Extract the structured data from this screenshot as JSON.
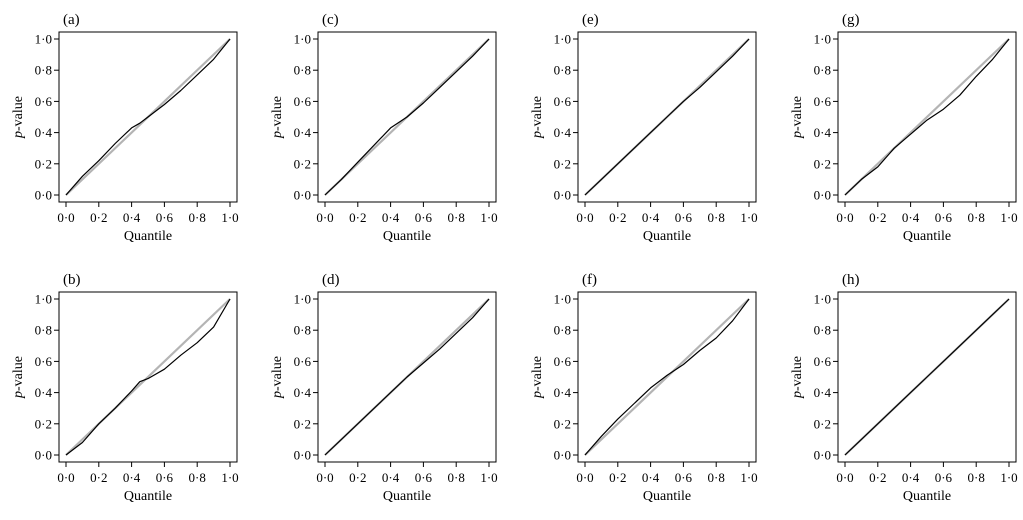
{
  "figure": {
    "x_axis_label": "Quantile",
    "y_axis_label_italic": "p",
    "y_axis_label_rest": "-value",
    "ticks": [
      "0·0",
      "0·2",
      "0·4",
      "0·6",
      "0·8",
      "1·0"
    ]
  },
  "chart_data": [
    {
      "panel": "(a)",
      "type": "line",
      "xlabel": "Quantile",
      "ylabel": "p-value",
      "xlim": [
        0,
        1
      ],
      "ylim": [
        0,
        1
      ],
      "series": [
        {
          "x": [
            0,
            0.1,
            0.2,
            0.3,
            0.4,
            0.45,
            0.5,
            0.6,
            0.7,
            0.8,
            0.9,
            1.0
          ],
          "y": [
            0,
            0.12,
            0.22,
            0.33,
            0.43,
            0.46,
            0.5,
            0.58,
            0.67,
            0.77,
            0.87,
            1.0
          ]
        }
      ]
    },
    {
      "panel": "(b)",
      "type": "line",
      "xlabel": "Quantile",
      "ylabel": "p-value",
      "xlim": [
        0,
        1
      ],
      "ylim": [
        0,
        1
      ],
      "series": [
        {
          "x": [
            0,
            0.1,
            0.2,
            0.3,
            0.4,
            0.45,
            0.5,
            0.6,
            0.7,
            0.8,
            0.9,
            1.0
          ],
          "y": [
            0,
            0.08,
            0.2,
            0.3,
            0.41,
            0.47,
            0.49,
            0.55,
            0.64,
            0.72,
            0.82,
            1.0
          ]
        }
      ]
    },
    {
      "panel": "(c)",
      "type": "line",
      "xlabel": "Quantile",
      "ylabel": "p-value",
      "xlim": [
        0,
        1
      ],
      "ylim": [
        0,
        1
      ],
      "series": [
        {
          "x": [
            0,
            0.1,
            0.2,
            0.3,
            0.4,
            0.5,
            0.6,
            0.7,
            0.8,
            0.9,
            1.0
          ],
          "y": [
            0,
            0.1,
            0.21,
            0.32,
            0.43,
            0.5,
            0.59,
            0.69,
            0.79,
            0.89,
            1.0
          ]
        }
      ]
    },
    {
      "panel": "(d)",
      "type": "line",
      "xlabel": "Quantile",
      "ylabel": "p-value",
      "xlim": [
        0,
        1
      ],
      "ylim": [
        0,
        1
      ],
      "series": [
        {
          "x": [
            0,
            0.1,
            0.2,
            0.3,
            0.4,
            0.5,
            0.6,
            0.7,
            0.8,
            0.9,
            1.0
          ],
          "y": [
            0,
            0.1,
            0.2,
            0.3,
            0.4,
            0.5,
            0.59,
            0.68,
            0.78,
            0.88,
            1.0
          ]
        }
      ]
    },
    {
      "panel": "(e)",
      "type": "line",
      "xlabel": "Quantile",
      "ylabel": "p-value",
      "xlim": [
        0,
        1
      ],
      "ylim": [
        0,
        1
      ],
      "series": [
        {
          "x": [
            0,
            0.1,
            0.2,
            0.3,
            0.4,
            0.5,
            0.6,
            0.7,
            0.8,
            0.9,
            1.0
          ],
          "y": [
            0,
            0.1,
            0.2,
            0.3,
            0.4,
            0.5,
            0.6,
            0.69,
            0.79,
            0.89,
            1.0
          ]
        }
      ]
    },
    {
      "panel": "(f)",
      "type": "line",
      "xlabel": "Quantile",
      "ylabel": "p-value",
      "xlim": [
        0,
        1
      ],
      "ylim": [
        0,
        1
      ],
      "series": [
        {
          "x": [
            0,
            0.1,
            0.2,
            0.3,
            0.4,
            0.5,
            0.6,
            0.7,
            0.8,
            0.9,
            1.0
          ],
          "y": [
            0,
            0.12,
            0.23,
            0.33,
            0.43,
            0.51,
            0.58,
            0.67,
            0.75,
            0.86,
            1.0
          ]
        }
      ]
    },
    {
      "panel": "(g)",
      "type": "line",
      "xlabel": "Quantile",
      "ylabel": "p-value",
      "xlim": [
        0,
        1
      ],
      "ylim": [
        0,
        1
      ],
      "series": [
        {
          "x": [
            0,
            0.1,
            0.2,
            0.3,
            0.4,
            0.5,
            0.6,
            0.7,
            0.8,
            0.9,
            1.0
          ],
          "y": [
            0,
            0.1,
            0.18,
            0.3,
            0.39,
            0.48,
            0.55,
            0.64,
            0.76,
            0.87,
            1.0
          ]
        }
      ]
    },
    {
      "panel": "(h)",
      "type": "line",
      "xlabel": "Quantile",
      "ylabel": "p-value",
      "xlim": [
        0,
        1
      ],
      "ylim": [
        0,
        1
      ],
      "series": [
        {
          "x": [
            0,
            0.1,
            0.2,
            0.3,
            0.4,
            0.5,
            0.6,
            0.7,
            0.8,
            0.9,
            1.0
          ],
          "y": [
            0,
            0.1,
            0.2,
            0.3,
            0.4,
            0.5,
            0.6,
            0.7,
            0.8,
            0.9,
            1.0
          ]
        }
      ]
    }
  ]
}
